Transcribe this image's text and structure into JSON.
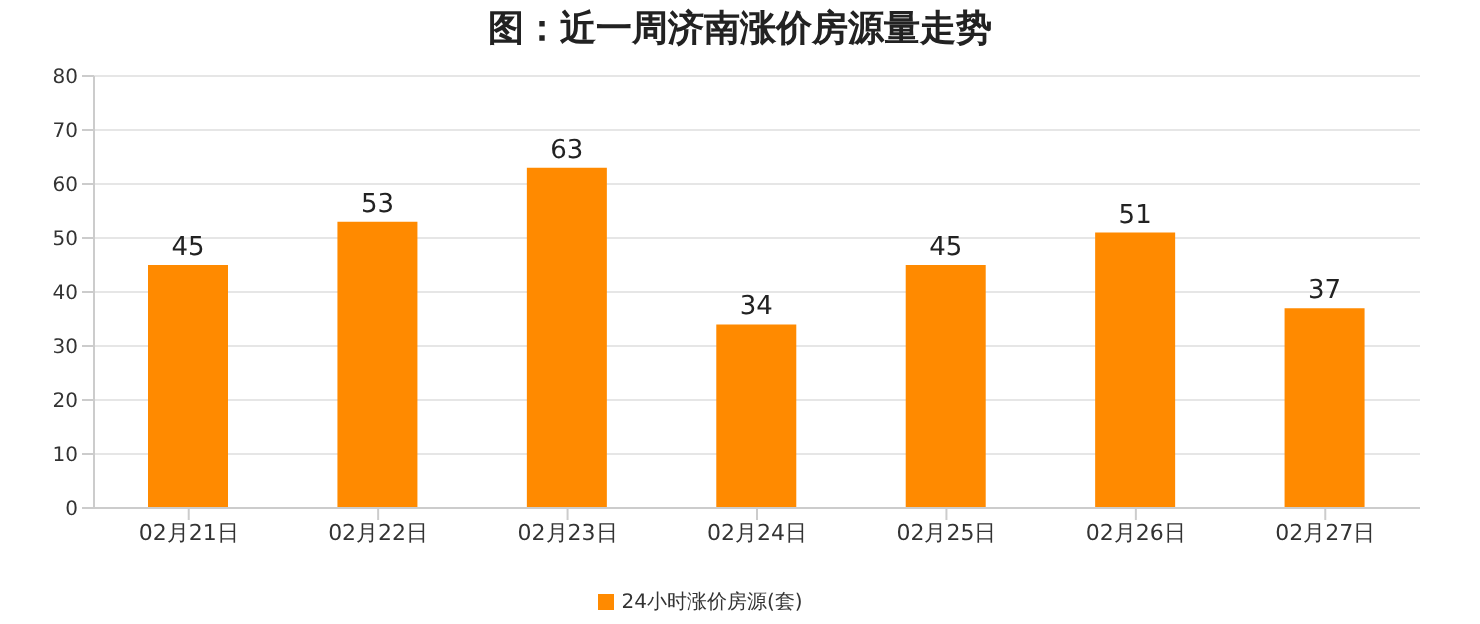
{
  "chart_data": {
    "type": "bar",
    "title": "图：近一周济南涨价房源量走势",
    "categories": [
      "02月21日",
      "02月22日",
      "02月23日",
      "02月24日",
      "02月25日",
      "02月26日",
      "02月27日"
    ],
    "series": [
      {
        "name": "24小时涨价房源(套)",
        "color": "#ff8a00",
        "values": [
          45,
          53,
          63,
          34,
          45,
          51,
          37
        ]
      }
    ],
    "ylim": [
      0,
      80
    ],
    "yticks": [
      0,
      10,
      20,
      30,
      40,
      50,
      60,
      70,
      80
    ],
    "grid": "y",
    "legend": "bottom",
    "data_labels": true
  }
}
